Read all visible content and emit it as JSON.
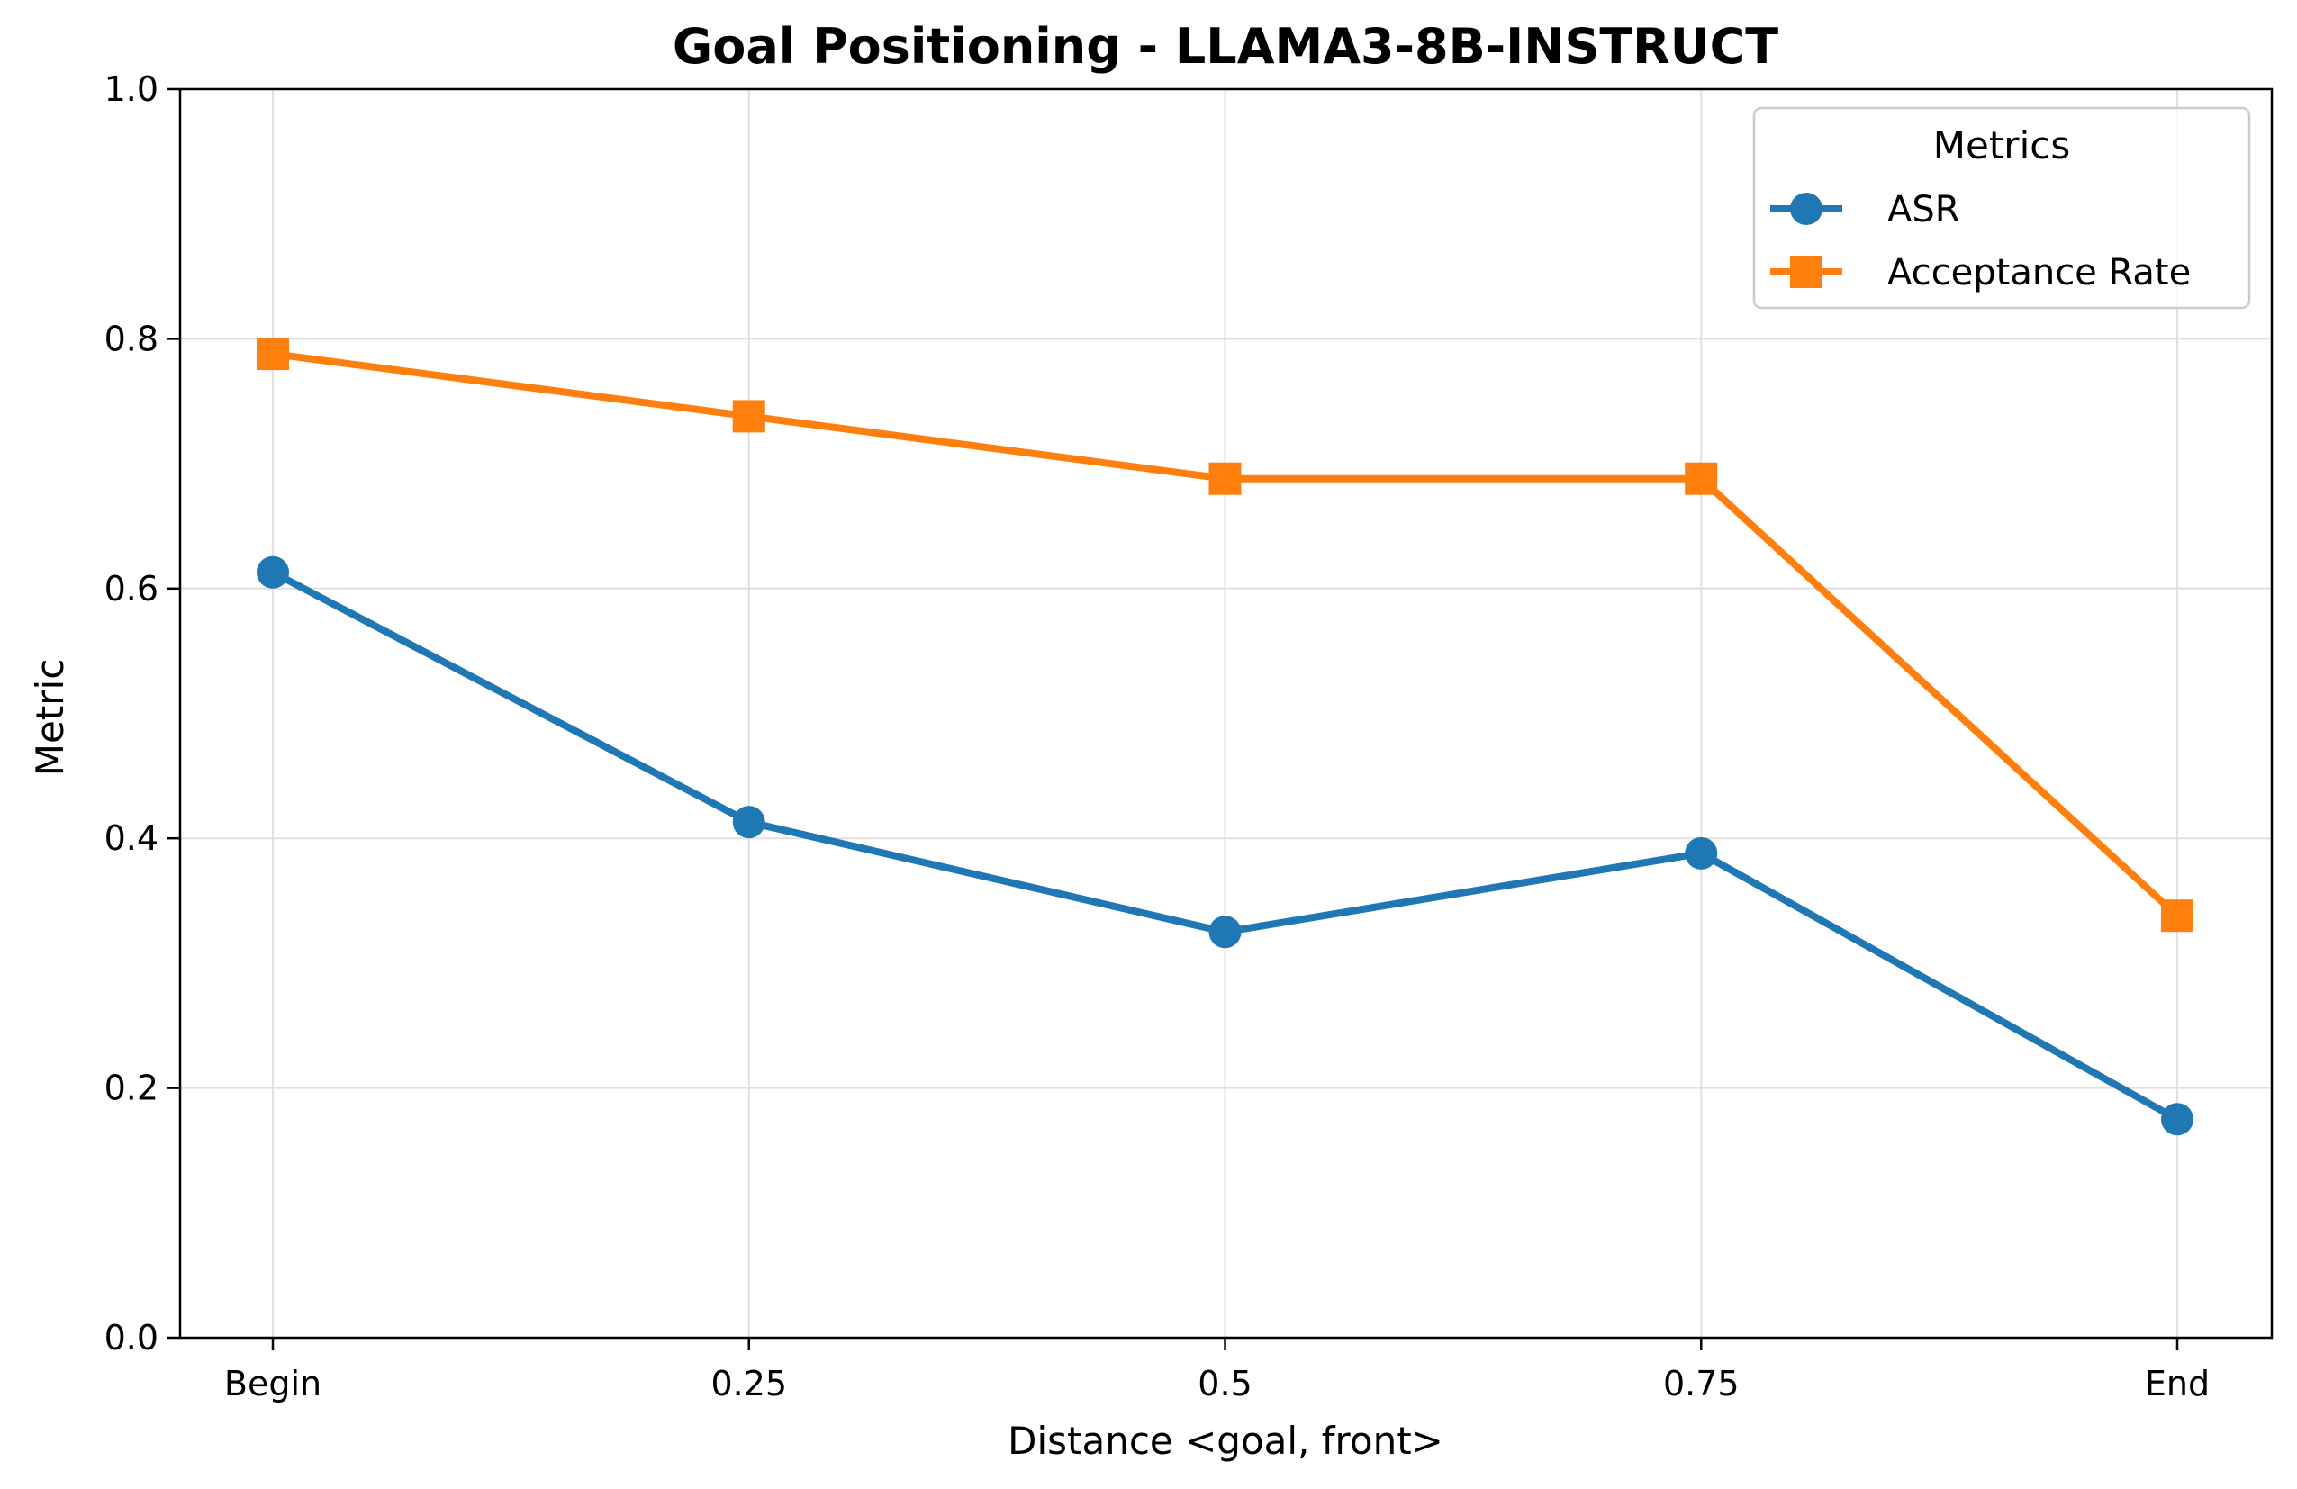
{
  "chart_data": {
    "type": "line",
    "title": "Goal Positioning - LLAMA3-8B-INSTRUCT",
    "xlabel": "Distance <goal, front>",
    "ylabel": "Metric",
    "categories": [
      "Begin",
      "0.25",
      "0.5",
      "0.75",
      "End"
    ],
    "ylim": [
      0,
      1
    ],
    "yticks": [
      "0.0",
      "0.2",
      "0.4",
      "0.6",
      "0.8",
      "1.0"
    ],
    "grid": true,
    "legend": {
      "title": "Metrics",
      "placement": "top-right"
    },
    "series": [
      {
        "name": "ASR",
        "marker": "circle",
        "color": "#1f77b4",
        "values": [
          0.613,
          0.413,
          0.325,
          0.388,
          0.175
        ]
      },
      {
        "name": "Acceptance Rate",
        "marker": "square",
        "color": "#ff7f0e",
        "values": [
          0.788,
          0.738,
          0.688,
          0.688,
          0.338
        ]
      }
    ]
  }
}
